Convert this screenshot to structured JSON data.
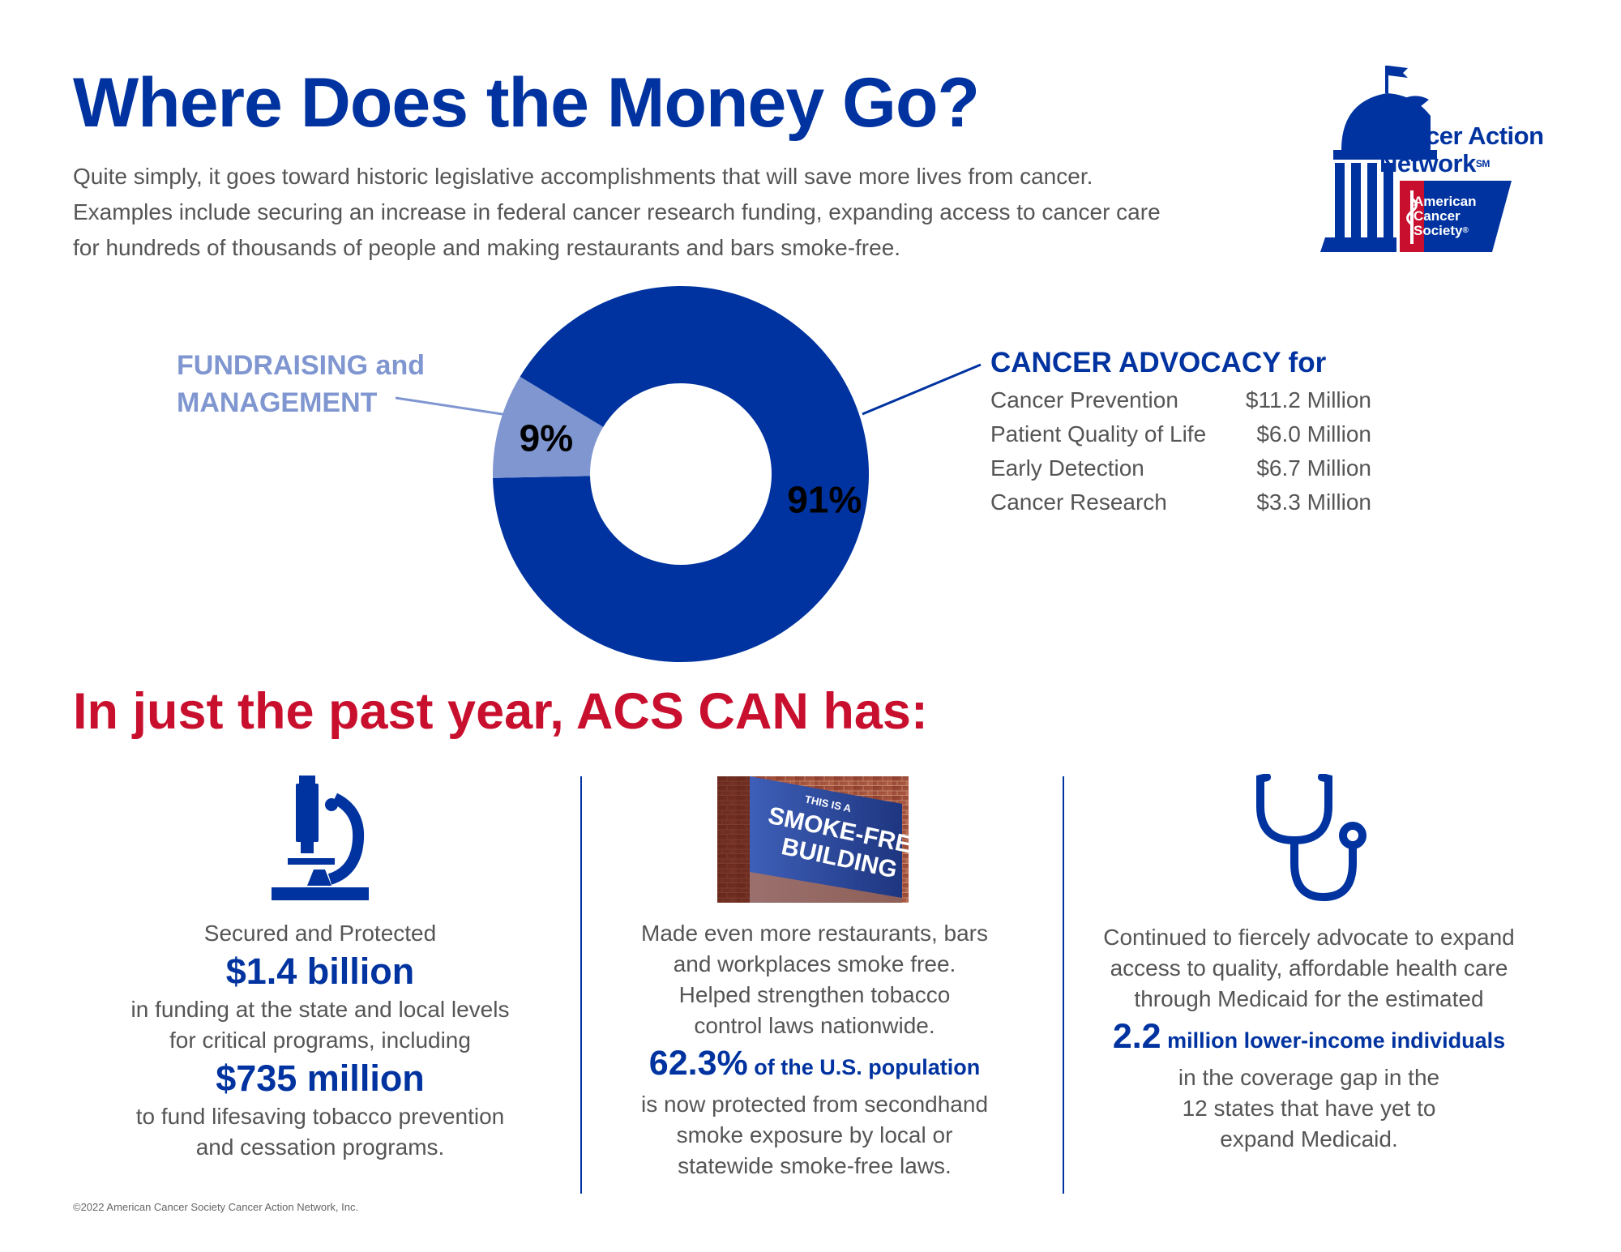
{
  "header": {
    "title": "Where Does the Money Go?",
    "intro_lines": [
      "Quite simply, it goes toward historic legislative accomplishments that will save more lives from cancer.",
      "Examples include securing an increase in federal cancer research funding, expanding access to cancer care",
      "for hundreds of thousands of people and making restaurants and bars smoke-free."
    ]
  },
  "logo": {
    "title_line1": "Cancer Action",
    "title_line2": "Network",
    "sm_mark": "SM",
    "acs_line1": "American",
    "acs_line2": "Cancer",
    "acs_line3": "Society",
    "reg_mark": "®"
  },
  "chart_data": {
    "type": "pie",
    "donut": true,
    "slices": [
      {
        "label": "CANCER ADVOCACY for",
        "value": 91,
        "display": "91%",
        "color": "#0033a0"
      },
      {
        "label": "FUNDRAISING and MANAGEMENT",
        "value": 9,
        "display": "9%",
        "color": "#7f96d0"
      }
    ],
    "fundraising_label_lines": [
      "FUNDRAISING and",
      "MANAGEMENT"
    ],
    "advocacy_title": "CANCER ADVOCACY for",
    "advocacy_breakdown": [
      {
        "category": "Cancer Prevention",
        "amount": "$11.2 Million",
        "value_millions": 11.2
      },
      {
        "category": "Patient Quality of Life",
        "amount": "$6.0 Million",
        "value_millions": 6.0
      },
      {
        "category": "Early Detection",
        "amount": "$6.7 Million",
        "value_millions": 6.7
      },
      {
        "category": "Cancer Research",
        "amount": "$3.3 Million",
        "value_millions": 3.3
      }
    ]
  },
  "section": {
    "heading": "In just the past year, ACS CAN has:"
  },
  "col1": {
    "icon": "microscope-icon",
    "line1": "Secured and Protected",
    "big1": "$1.4 billion",
    "line2": "in funding at the state and local levels",
    "line3": "for critical programs, including",
    "big2": "$735 million",
    "line4": "to fund lifesaving tobacco prevention",
    "line5": "and cessation programs."
  },
  "col2": {
    "photo": {
      "sign_line1": "THIS IS A",
      "sign_line2": "SMOKE-FREE",
      "sign_line3": "BUILDING"
    },
    "line1": "Made even more restaurants, bars",
    "line2": "and workplaces smoke free.",
    "line3": "Helped strengthen tobacco",
    "line4": "control laws nationwide.",
    "big": "62.3%",
    "big_suffix": " of the U.S. population",
    "line5": "is now protected from secondhand",
    "line6": "smoke exposure by local or",
    "line7": "statewide smoke-free laws."
  },
  "col3": {
    "icon": "stethoscope-icon",
    "line1": "Continued to fiercely advocate to expand",
    "line2": "access to quality, affordable health care",
    "line3": "through Medicaid for the estimated",
    "big": "2.2",
    "big_suffix": " million lower-income individuals",
    "line4": "in the coverage gap in the",
    "line5": "12 states that have yet to",
    "line6": "expand Medicaid."
  },
  "footer": {
    "copyright": "©2022 American Cancer Society Cancer Action Network, Inc."
  },
  "colors": {
    "brand_blue": "#0033a0",
    "light_blue": "#7f96d0",
    "accent_red": "#c8102e",
    "body_text": "#555555"
  }
}
